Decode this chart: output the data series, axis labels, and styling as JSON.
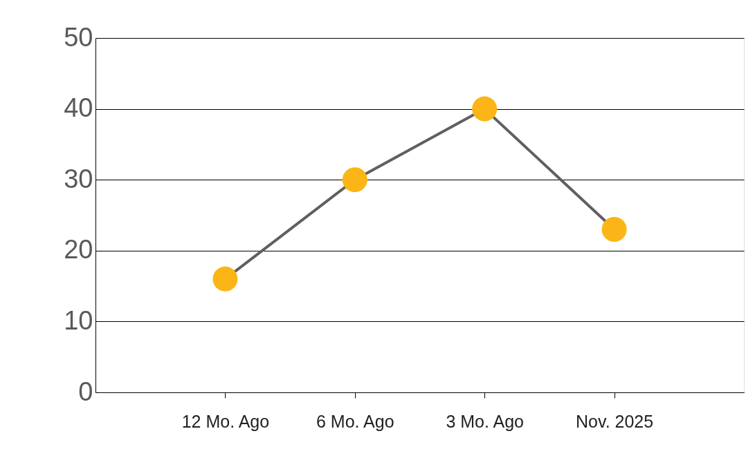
{
  "chart_data": {
    "type": "line",
    "categories": [
      "12 Mo. Ago",
      "6 Mo. Ago",
      "3 Mo. Ago",
      "Nov. 2025"
    ],
    "series": [
      {
        "color": "#5f5f5f",
        "colors": [
          "#fbb516",
          "#fbb516",
          "#fbb516",
          "#fbb516"
        ],
        "values": [
          16,
          30,
          40,
          23
        ]
      }
    ],
    "ylim": [
      0,
      50
    ],
    "yticks": [
      0,
      10,
      20,
      30,
      40,
      50
    ],
    "grid": "y",
    "marker": "circle",
    "line_style": "solid"
  }
}
